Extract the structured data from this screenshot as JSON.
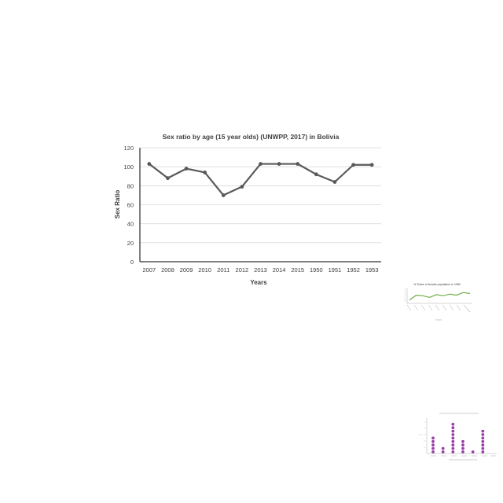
{
  "chart_data": [
    {
      "type": "line",
      "title": "Sex ratio by age (15 year olds) (UNWPP, 2017) in Bolivia",
      "xlabel": "Years",
      "ylabel": "Sex Ratio",
      "categories": [
        "2007",
        "2008",
        "2009",
        "2010",
        "2011",
        "2012",
        "2013",
        "2014",
        "2015",
        "1950",
        "1951",
        "1952",
        "1953"
      ],
      "series": [
        {
          "values": [
            103,
            88,
            98,
            94,
            70,
            79,
            103,
            103,
            103,
            92,
            84,
            102,
            102
          ]
        }
      ],
      "ylim": [
        0,
        120
      ],
      "yticks": [
        0,
        20,
        40,
        60,
        80,
        100,
        120
      ],
      "grid": true,
      "colors": {
        "line": "#595959",
        "grid": "#d9d9d9",
        "axis": "#000000",
        "text": "#404040"
      }
    },
    {
      "type": "line",
      "title": "% Share of female population in 1980",
      "series": [
        {
          "values": [
            48.2,
            49.1,
            49.0,
            48.7,
            49.2,
            49.0,
            49.3,
            49.1,
            49.6,
            49.4
          ]
        }
      ],
      "grid": false,
      "colors": {
        "line": "#70ad47"
      }
    },
    {
      "type": "scatter",
      "categories": [
        "",
        "",
        "",
        "",
        "",
        "",
        ""
      ],
      "values": [
        5,
        2,
        9,
        4,
        1,
        7,
        0
      ],
      "grid": false,
      "colors": {
        "marker": "#9a3fa8"
      }
    }
  ]
}
